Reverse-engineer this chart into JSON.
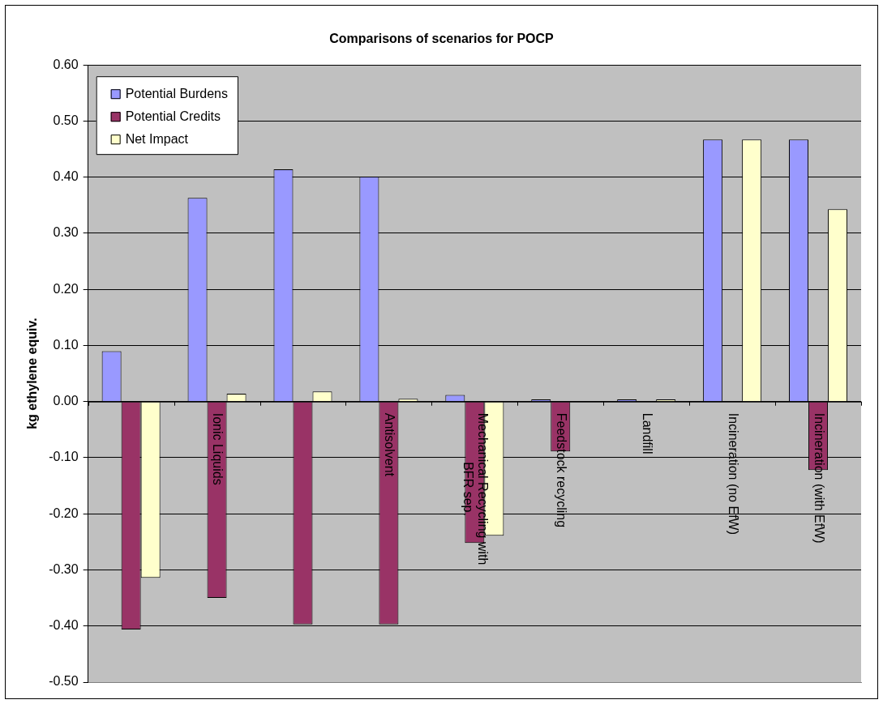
{
  "chart_data": {
    "type": "bar",
    "title": "Comparisons of scenarios for POCP",
    "ylabel": "kg ethylene equiv.",
    "categories": [
      null,
      "Ionic Liquids",
      null,
      "Antisolvent",
      "Mechanical Recycling with BFR sep.",
      "Feedstock recycling",
      "Landfill",
      "Incineration (no EfW)",
      "Incineration (with EfW)"
    ],
    "series": [
      {
        "name": "Potential Burdens",
        "color": "#9999ff",
        "values": [
          0.09,
          0.363,
          0.414,
          0.401,
          0.012,
          0.004,
          0.004,
          0.467,
          0.467
        ]
      },
      {
        "name": "Potential Credits",
        "color": "#993366",
        "values": [
          -0.406,
          -0.35,
          -0.397,
          -0.397,
          -0.252,
          -0.089,
          0,
          0,
          -0.122
        ]
      },
      {
        "name": "Net Impact",
        "color": "#ffffcc",
        "values": [
          -0.314,
          0.014,
          0.018,
          0.005,
          -0.239,
          0,
          0.004,
          0.467,
          0.343
        ]
      }
    ],
    "ylim": [
      -0.5,
      0.6
    ],
    "yticks": [
      {
        "value": -0.5,
        "label": "-0.50"
      },
      {
        "value": -0.4,
        "label": "-0.40"
      },
      {
        "value": -0.3,
        "label": "-0.30"
      },
      {
        "value": -0.2,
        "label": "-0.20"
      },
      {
        "value": -0.1,
        "label": "-0.10"
      },
      {
        "value": 0,
        "label": "0.00"
      },
      {
        "value": 0.1,
        "label": "0.10"
      },
      {
        "value": 0.2,
        "label": "0.20"
      },
      {
        "value": 0.3,
        "label": "0.30"
      },
      {
        "value": 0.4,
        "label": "0.40"
      },
      {
        "value": 0.5,
        "label": "0.50"
      },
      {
        "value": 0.6,
        "label": "0.60"
      }
    ],
    "grid": "y",
    "legend": "top left"
  }
}
